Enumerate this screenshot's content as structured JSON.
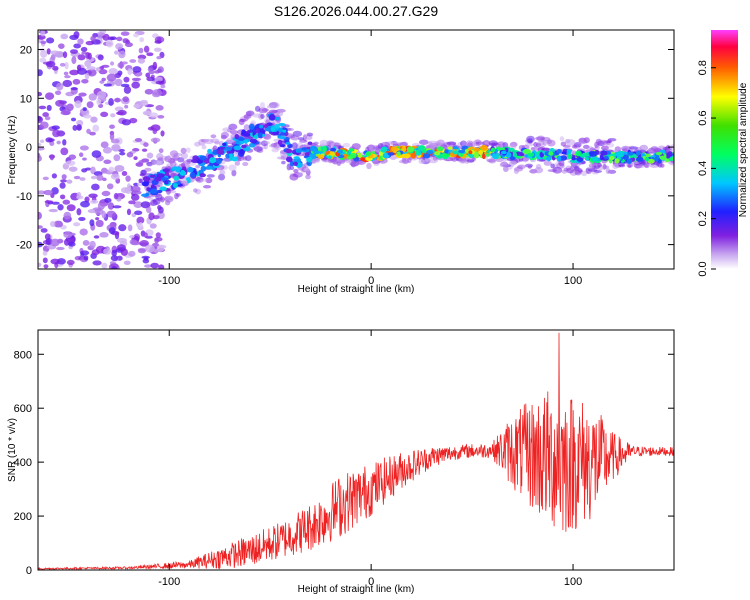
{
  "title": "S126.2026.044.00.27.G29",
  "chart_data": [
    {
      "type": "heatmap",
      "name": "spectrogram",
      "xlabel": "Height of straight line (km)",
      "ylabel": "Frequency (Hz)",
      "xlim": [
        -165,
        150
      ],
      "ylim": [
        -25,
        24
      ],
      "xticks": [
        -100,
        0,
        100
      ],
      "xtick_labels": [
        "-100",
        "0",
        "100"
      ],
      "yticks": [
        20,
        10,
        0,
        -10,
        -20
      ],
      "ytick_labels": [
        "20",
        "10",
        "0",
        "-10",
        "-20"
      ],
      "ridge": [
        {
          "x": -110,
          "y": -8
        },
        {
          "x": -100,
          "y": -6.5
        },
        {
          "x": -90,
          "y": -5
        },
        {
          "x": -80,
          "y": -3
        },
        {
          "x": -70,
          "y": -1
        },
        {
          "x": -60,
          "y": 2
        },
        {
          "x": -50,
          "y": 5.5
        },
        {
          "x": -45,
          "y": 3
        },
        {
          "x": -40,
          "y": -1
        },
        {
          "x": -35,
          "y": -2.5
        },
        {
          "x": -30,
          "y": -1
        },
        {
          "x": -20,
          "y": -1.2
        },
        {
          "x": -10,
          "y": -1.5
        },
        {
          "x": 0,
          "y": -2
        },
        {
          "x": 10,
          "y": -1
        },
        {
          "x": 20,
          "y": -1
        },
        {
          "x": 30,
          "y": -1
        },
        {
          "x": 40,
          "y": -1
        },
        {
          "x": 50,
          "y": -1
        },
        {
          "x": 60,
          "y": -1
        },
        {
          "x": 70,
          "y": -1.5
        },
        {
          "x": 80,
          "y": -1.5
        },
        {
          "x": 90,
          "y": -1.5
        },
        {
          "x": 100,
          "y": -2
        },
        {
          "x": 110,
          "y": -2
        },
        {
          "x": 120,
          "y": -2
        },
        {
          "x": 130,
          "y": -2
        },
        {
          "x": 140,
          "y": -2
        },
        {
          "x": 150,
          "y": -2
        }
      ],
      "colorbar": {
        "label": "Normalized spectral amplitude",
        "range": [
          0,
          0.95
        ],
        "ticks": [
          0.0,
          0.2,
          0.4,
          0.6,
          0.8
        ],
        "tick_labels": [
          "0.0",
          "0.2",
          "0.4",
          "0.6",
          "0.8"
        ]
      }
    },
    {
      "type": "line",
      "name": "snr",
      "xlabel": "Height of straight line (km)",
      "ylabel": "SNR (10 * v/v)",
      "xlim": [
        -165,
        150
      ],
      "ylim": [
        0,
        890
      ],
      "xticks": [
        -100,
        0,
        100
      ],
      "xtick_labels": [
        "-100",
        "0",
        "100"
      ],
      "yticks": [
        0,
        200,
        400,
        600,
        800
      ],
      "ytick_labels": [
        "0",
        "200",
        "400",
        "600",
        "800"
      ],
      "color": "#ee2222",
      "envelope": [
        {
          "x": -165,
          "mean": 5,
          "spread": 3
        },
        {
          "x": -120,
          "mean": 8,
          "spread": 4
        },
        {
          "x": -90,
          "mean": 20,
          "spread": 15
        },
        {
          "x": -75,
          "mean": 45,
          "spread": 40
        },
        {
          "x": -60,
          "mean": 70,
          "spread": 60
        },
        {
          "x": -45,
          "mean": 110,
          "spread": 70
        },
        {
          "x": -30,
          "mean": 160,
          "spread": 90
        },
        {
          "x": -15,
          "mean": 240,
          "spread": 120
        },
        {
          "x": 0,
          "mean": 300,
          "spread": 100
        },
        {
          "x": 15,
          "mean": 370,
          "spread": 70
        },
        {
          "x": 30,
          "mean": 420,
          "spread": 40
        },
        {
          "x": 45,
          "mean": 440,
          "spread": 25
        },
        {
          "x": 60,
          "mean": 445,
          "spread": 30
        },
        {
          "x": 70,
          "mean": 440,
          "spread": 140
        },
        {
          "x": 85,
          "mean": 420,
          "spread": 250
        },
        {
          "x": 95,
          "mean": 400,
          "spread": 280
        },
        {
          "x": 110,
          "mean": 400,
          "spread": 220
        },
        {
          "x": 120,
          "mean": 420,
          "spread": 90
        },
        {
          "x": 130,
          "mean": 440,
          "spread": 20
        },
        {
          "x": 150,
          "mean": 440,
          "spread": 15
        }
      ],
      "peak": {
        "x": 93,
        "y": 880
      }
    }
  ]
}
